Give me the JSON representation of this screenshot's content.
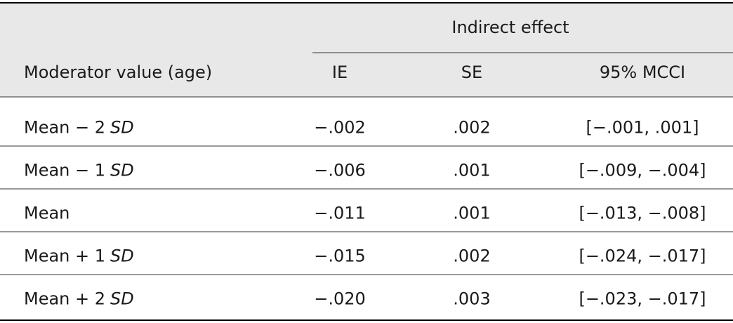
{
  "table": {
    "header": {
      "group": "Indirect effect",
      "columns": [
        "Moderator value (age)",
        "IE",
        "SE",
        "95% MCCI"
      ]
    },
    "rows": [
      [
        [
          "Mean − 2",
          "SD"
        ],
        "−.002",
        ".002",
        "[−.001, .001]"
      ],
      [
        [
          "Mean − 1",
          "SD"
        ],
        "−.006",
        ".001",
        "[−.009, −.004]"
      ],
      [
        [
          "Mean"
        ],
        "−.011",
        ".001",
        "[−.013, −.008]"
      ],
      [
        [
          "Mean + 1",
          "SD"
        ],
        "−.015",
        ".002",
        "[−.024, −.017]"
      ],
      [
        [
          "Mean + 2",
          "SD"
        ],
        "−.020",
        ".003",
        "[−.023, −.017]"
      ]
    ]
  }
}
